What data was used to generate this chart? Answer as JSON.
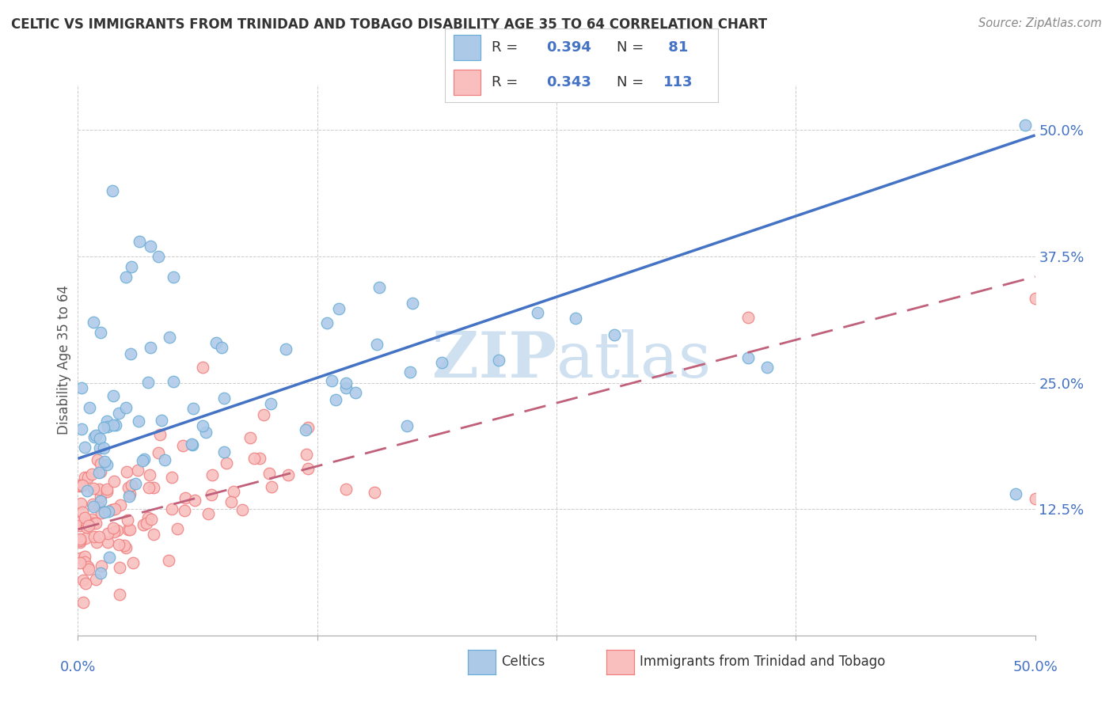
{
  "title": "CELTIC VS IMMIGRANTS FROM TRINIDAD AND TOBAGO DISABILITY AGE 35 TO 64 CORRELATION CHART",
  "source": "Source: ZipAtlas.com",
  "ylabel": "Disability Age 35 to 64",
  "y_tick_labels": [
    "12.5%",
    "25.0%",
    "37.5%",
    "50.0%"
  ],
  "y_tick_values": [
    0.125,
    0.25,
    0.375,
    0.5
  ],
  "xlim": [
    0.0,
    0.5
  ],
  "ylim": [
    0.0,
    0.55
  ],
  "legend_r1": "0.394",
  "legend_n1": " 81",
  "legend_r2": "0.343",
  "legend_n2": "113",
  "color_celtic_edge": "#6baed6",
  "color_celtic_fill": "#adc9e8",
  "color_trinidad_edge": "#f08080",
  "color_trinidad_fill": "#f9bfbf",
  "color_blue_line": "#4472C4",
  "color_pink_line": "#c0607a",
  "color_axis_label": "#4472C4",
  "watermark_color": "#cfe0f0",
  "celtic_line_y0": 0.175,
  "celtic_line_y1": 0.495,
  "trinidad_line_y0": 0.105,
  "trinidad_line_y1": 0.355
}
